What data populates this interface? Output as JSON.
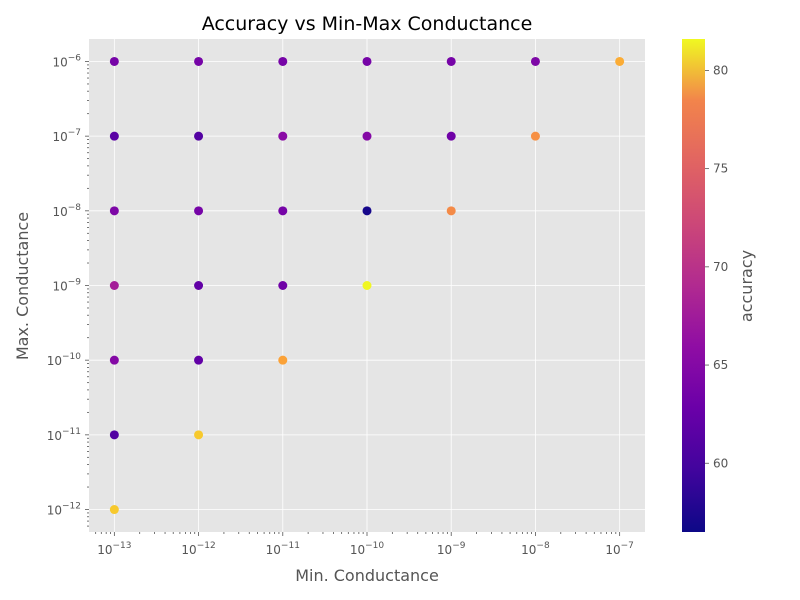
{
  "chart_data": {
    "type": "scatter",
    "title": "Accuracy vs Min-Max Conductance",
    "xlabel": "Min. Conductance",
    "ylabel": "Max. Conductance",
    "xscale": "log",
    "yscale": "log",
    "xlim": [
      5e-14,
      2e-07
    ],
    "ylim": [
      5e-13,
      2e-06
    ],
    "grid": true,
    "x_ticks": [
      {
        "exp": -13,
        "label": "10",
        "sup": "−13"
      },
      {
        "exp": -12,
        "label": "10",
        "sup": "−12"
      },
      {
        "exp": -11,
        "label": "10",
        "sup": "−11"
      },
      {
        "exp": -10,
        "label": "10",
        "sup": "−10"
      },
      {
        "exp": -9,
        "label": "10",
        "sup": "−9"
      },
      {
        "exp": -8,
        "label": "10",
        "sup": "−8"
      },
      {
        "exp": -7,
        "label": "10",
        "sup": "−7"
      }
    ],
    "y_ticks": [
      {
        "exp": -12,
        "label": "10",
        "sup": "−12"
      },
      {
        "exp": -11,
        "label": "10",
        "sup": "−11"
      },
      {
        "exp": -10,
        "label": "10",
        "sup": "−10"
      },
      {
        "exp": -9,
        "label": "10",
        "sup": "−9"
      },
      {
        "exp": -8,
        "label": "10",
        "sup": "−8"
      },
      {
        "exp": -7,
        "label": "10",
        "sup": "−7"
      },
      {
        "exp": -6,
        "label": "10",
        "sup": "−6"
      }
    ],
    "colorbar": {
      "label": "accuracy",
      "colormap": "plasma",
      "range": [
        56.5,
        81.6
      ],
      "ticks": [
        60,
        65,
        70,
        75,
        80
      ]
    },
    "points": [
      {
        "x": 1e-13,
        "y": 1e-06,
        "accuracy": 63
      },
      {
        "x": 1e-12,
        "y": 1e-06,
        "accuracy": 63
      },
      {
        "x": 1e-11,
        "y": 1e-06,
        "accuracy": 63
      },
      {
        "x": 1e-10,
        "y": 1e-06,
        "accuracy": 63
      },
      {
        "x": 1e-09,
        "y": 1e-06,
        "accuracy": 63
      },
      {
        "x": 1e-08,
        "y": 1e-06,
        "accuracy": 63.5
      },
      {
        "x": 1e-07,
        "y": 1e-06,
        "accuracy": 79
      },
      {
        "x": 1e-13,
        "y": 1e-07,
        "accuracy": 61
      },
      {
        "x": 1e-12,
        "y": 1e-07,
        "accuracy": 60.5
      },
      {
        "x": 1e-11,
        "y": 1e-07,
        "accuracy": 64.5
      },
      {
        "x": 1e-10,
        "y": 1e-07,
        "accuracy": 64
      },
      {
        "x": 1e-09,
        "y": 1e-07,
        "accuracy": 62.5
      },
      {
        "x": 1e-08,
        "y": 1e-07,
        "accuracy": 77
      },
      {
        "x": 1e-13,
        "y": 1e-08,
        "accuracy": 63.5
      },
      {
        "x": 1e-12,
        "y": 1e-08,
        "accuracy": 63
      },
      {
        "x": 1e-11,
        "y": 1e-08,
        "accuracy": 63
      },
      {
        "x": 1e-10,
        "y": 1e-08,
        "accuracy": 57
      },
      {
        "x": 1e-09,
        "y": 1e-08,
        "accuracy": 76.5
      },
      {
        "x": 1e-13,
        "y": 1e-09,
        "accuracy": 66.5
      },
      {
        "x": 1e-12,
        "y": 1e-09,
        "accuracy": 61.5
      },
      {
        "x": 1e-11,
        "y": 1e-09,
        "accuracy": 62.5
      },
      {
        "x": 1e-10,
        "y": 1e-09,
        "accuracy": 81.5
      },
      {
        "x": 1e-13,
        "y": 1e-10,
        "accuracy": 64
      },
      {
        "x": 1e-12,
        "y": 1e-10,
        "accuracy": 61.5
      },
      {
        "x": 1e-11,
        "y": 1e-10,
        "accuracy": 78.5
      },
      {
        "x": 1e-13,
        "y": 1e-11,
        "accuracy": 60.5
      },
      {
        "x": 1e-12,
        "y": 1e-11,
        "accuracy": 80
      },
      {
        "x": 1e-13,
        "y": 1e-12,
        "accuracy": 80
      }
    ]
  }
}
